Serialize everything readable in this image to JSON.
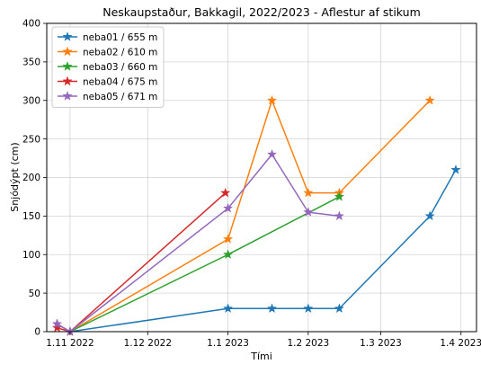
{
  "chart_data": {
    "type": "line",
    "title": "Neskaupstaður, Bakkagil, 2022/2023 - Aflestur af stikum",
    "xlabel": "Tími",
    "ylabel": "Snjódýpt (cm)",
    "ylim": [
      0,
      400
    ],
    "xlim": [
      "2022-10-23",
      "2023-04-07"
    ],
    "grid": true,
    "legend_position": "top-left",
    "marker": "star",
    "y_ticks": [
      "0",
      "50",
      "100",
      "150",
      "200",
      "250",
      "300",
      "350",
      "400"
    ],
    "x_ticks": [
      {
        "date": "2022-11-01",
        "label": "1.11 2022"
      },
      {
        "date": "2022-12-01",
        "label": "1.12 2022"
      },
      {
        "date": "2023-01-01",
        "label": "1.1 2023"
      },
      {
        "date": "2023-02-01",
        "label": "1.2 2023"
      },
      {
        "date": "2023-03-01",
        "label": "1.3 2023"
      },
      {
        "date": "2023-04-01",
        "label": "1.4 2023"
      }
    ],
    "series": [
      {
        "name": "neba01 / 655 m",
        "color": "#1f77b4",
        "points": [
          [
            "2022-10-27",
            10
          ],
          [
            "2022-11-01",
            0
          ],
          [
            "2023-01-01",
            30
          ],
          [
            "2023-01-18",
            30
          ],
          [
            "2023-02-01",
            30
          ],
          [
            "2023-02-13",
            30
          ],
          [
            "2023-03-20",
            150
          ],
          [
            "2023-03-30",
            210
          ]
        ]
      },
      {
        "name": "neba02 / 610 m",
        "color": "#ff7f0e",
        "points": [
          [
            "2022-10-27",
            10
          ],
          [
            "2022-11-01",
            0
          ],
          [
            "2023-01-01",
            120
          ],
          [
            "2023-01-18",
            300
          ],
          [
            "2023-02-01",
            180
          ],
          [
            "2023-02-13",
            180
          ],
          [
            "2023-03-20",
            300
          ]
        ]
      },
      {
        "name": "neba03 / 660 m",
        "color": "#2ca02c",
        "points": [
          [
            "2022-11-01",
            0
          ],
          [
            "2023-01-01",
            100
          ],
          [
            "2023-02-13",
            175
          ]
        ]
      },
      {
        "name": "neba04 / 675 m",
        "color": "#d62728",
        "points": [
          [
            "2022-10-27",
            5
          ],
          [
            "2022-11-01",
            0
          ],
          [
            "2022-12-31",
            180
          ]
        ]
      },
      {
        "name": "neba05 / 671 m",
        "color": "#9467bd",
        "points": [
          [
            "2022-10-27",
            10
          ],
          [
            "2022-11-01",
            0
          ],
          [
            "2023-01-01",
            160
          ],
          [
            "2023-01-18",
            230
          ],
          [
            "2023-02-01",
            155
          ],
          [
            "2023-02-13",
            150
          ]
        ]
      }
    ]
  }
}
